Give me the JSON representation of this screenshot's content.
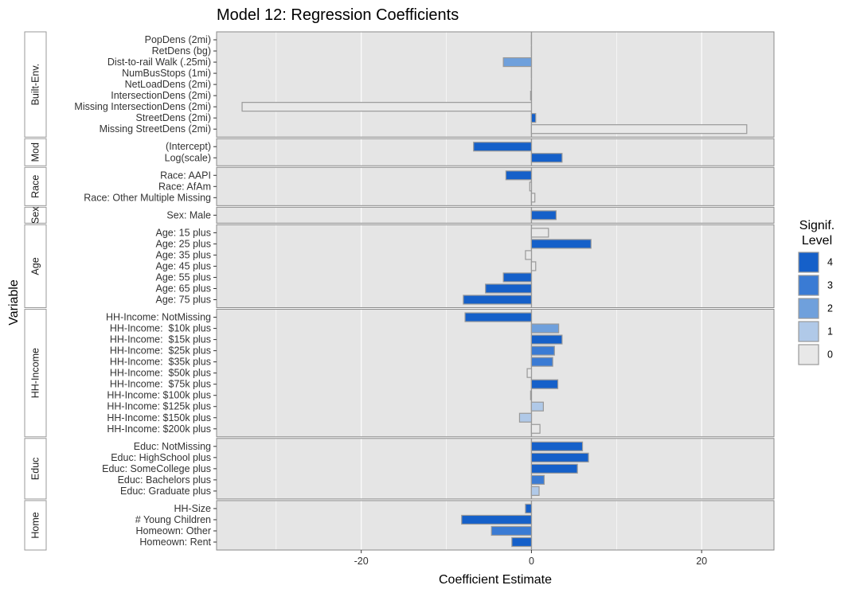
{
  "chart_data": {
    "type": "bar",
    "orientation": "horizontal",
    "title": "Model 12: Regression Coefficients",
    "xlabel": "Coefficient Estimate",
    "ylabel": "Variable",
    "xlim": [
      -37,
      28.5
    ],
    "xticks": [
      -20,
      0,
      20
    ],
    "grid": true,
    "legend": {
      "title_lines": [
        "Signif.",
        "Level"
      ],
      "placement": "right",
      "levels": [
        {
          "label": "4",
          "color": "#1560c9"
        },
        {
          "label": "3",
          "color": "#3a7bd4"
        },
        {
          "label": "2",
          "color": "#6fa0dc"
        },
        {
          "label": "1",
          "color": "#b0c9e8"
        },
        {
          "label": "0",
          "color": "#e8e8e8"
        }
      ]
    },
    "groups": [
      {
        "name": "Built-Env.",
        "items": [
          {
            "label": "PopDens (2mi)",
            "value": 0,
            "level": 0
          },
          {
            "label": "RetDens (bg)",
            "value": 0,
            "level": 0
          },
          {
            "label": "Dist-to-rail Walk (.25mi)",
            "value": -3.3,
            "level": 2
          },
          {
            "label": "NumBusStops (1mi)",
            "value": 0,
            "level": 0
          },
          {
            "label": "NetLoadDens (2mi)",
            "value": 0,
            "level": 0
          },
          {
            "label": "IntersectionDens (2mi)",
            "value": -0.1,
            "level": 0
          },
          {
            "label": "Missing IntersectionDens (2mi)",
            "value": -34,
            "level": 0
          },
          {
            "label": "StreetDens (2mi)",
            "value": 0.5,
            "level": 4
          },
          {
            "label": "Missing StreetDens (2mi)",
            "value": 25.3,
            "level": 0
          }
        ]
      },
      {
        "name": "Mod",
        "items": [
          {
            "label": "(Intercept)",
            "value": -6.8,
            "level": 4
          },
          {
            "label": "Log(scale)",
            "value": 3.6,
            "level": 4
          }
        ]
      },
      {
        "name": "Race",
        "items": [
          {
            "label": "Race: AAPI",
            "value": -3.0,
            "level": 4
          },
          {
            "label": "Race: AfAm",
            "value": -0.2,
            "level": 0
          },
          {
            "label": "Race: Other Multiple Missing",
            "value": 0.4,
            "level": 0
          }
        ]
      },
      {
        "name": "Sex",
        "items": [
          {
            "label": "Sex: Male",
            "value": 2.9,
            "level": 4
          }
        ]
      },
      {
        "name": "Age",
        "items": [
          {
            "label": "Age: 15 plus",
            "value": 2.0,
            "level": 0
          },
          {
            "label": "Age: 25 plus",
            "value": 7.0,
            "level": 4
          },
          {
            "label": "Age: 35 plus",
            "value": -0.7,
            "level": 0
          },
          {
            "label": "Age: 45 plus",
            "value": 0.5,
            "level": 0
          },
          {
            "label": "Age: 55 plus",
            "value": -3.3,
            "level": 4
          },
          {
            "label": "Age: 65 plus",
            "value": -5.4,
            "level": 4
          },
          {
            "label": "Age: 75 plus",
            "value": -8.0,
            "level": 4
          }
        ]
      },
      {
        "name": "HH-Income",
        "items": [
          {
            "label": "HH-Income: NotMissing",
            "value": -7.8,
            "level": 4
          },
          {
            "label": "HH-Income:  $10k plus",
            "value": 3.2,
            "level": 2
          },
          {
            "label": "HH-Income:  $15k plus",
            "value": 3.6,
            "level": 4
          },
          {
            "label": "HH-Income:  $25k plus",
            "value": 2.7,
            "level": 3
          },
          {
            "label": "HH-Income:  $35k plus",
            "value": 2.5,
            "level": 3
          },
          {
            "label": "HH-Income:  $50k plus",
            "value": -0.5,
            "level": 0
          },
          {
            "label": "HH-Income:  $75k plus",
            "value": 3.1,
            "level": 4
          },
          {
            "label": "HH-Income: $100k plus",
            "value": -0.1,
            "level": 0
          },
          {
            "label": "HH-Income: $125k plus",
            "value": 1.4,
            "level": 1
          },
          {
            "label": "HH-Income: $150k plus",
            "value": -1.4,
            "level": 1
          },
          {
            "label": "HH-Income: $200k plus",
            "value": 1.0,
            "level": 0
          }
        ]
      },
      {
        "name": "Educ",
        "items": [
          {
            "label": "Educ: NotMissing",
            "value": 6.0,
            "level": 4
          },
          {
            "label": "Educ: HighSchool plus",
            "value": 6.7,
            "level": 4
          },
          {
            "label": "Educ: SomeCollege plus",
            "value": 5.4,
            "level": 4
          },
          {
            "label": "Educ: Bachelors plus",
            "value": 1.5,
            "level": 3
          },
          {
            "label": "Educ: Graduate plus",
            "value": 0.9,
            "level": 1
          }
        ]
      },
      {
        "name": "Home",
        "items": [
          {
            "label": "HH-Size",
            "value": -0.7,
            "level": 4
          },
          {
            "label": "# Young Children",
            "value": -8.2,
            "level": 4
          },
          {
            "label": "Homeown: Other",
            "value": -4.7,
            "level": 3
          },
          {
            "label": "Homeown: Rent",
            "value": -2.3,
            "level": 4
          }
        ]
      }
    ]
  }
}
